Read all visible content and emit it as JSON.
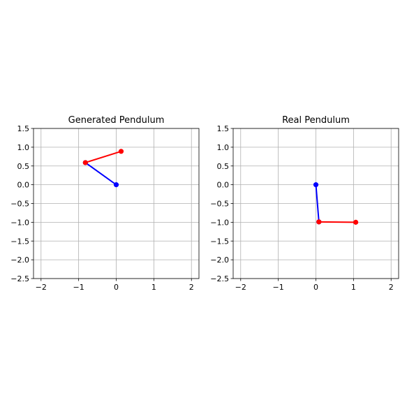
{
  "chart_data": [
    {
      "type": "line",
      "title": "Generated Pendulum",
      "xlabel": "",
      "ylabel": "",
      "xlim": [
        -2.2,
        2.2
      ],
      "ylim": [
        -2.5,
        1.5
      ],
      "xticks": [
        -2,
        -1,
        0,
        1,
        2
      ],
      "yticks": [
        1.5,
        1.0,
        0.5,
        0.0,
        -0.5,
        -1.0,
        -1.5,
        -2.0,
        -2.5
      ],
      "xtick_labels": [
        "−2",
        "−1",
        "0",
        "1",
        "2"
      ],
      "ytick_labels": [
        "1.5",
        "1.0",
        "0.5",
        "0.0",
        "−0.5",
        "−1.0",
        "−1.5",
        "−2.0",
        "−2.5"
      ],
      "grid": true,
      "series": [
        {
          "color": "#0000ff",
          "x": [
            0.0,
            -0.82
          ],
          "y": [
            0.0,
            0.59
          ]
        },
        {
          "color": "#ff0000",
          "x": [
            -0.82,
            0.13
          ],
          "y": [
            0.59,
            0.89
          ]
        }
      ]
    },
    {
      "type": "line",
      "title": "Real Pendulum",
      "xlabel": "",
      "ylabel": "",
      "xlim": [
        -2.2,
        2.2
      ],
      "ylim": [
        -2.5,
        1.5
      ],
      "xticks": [
        -2,
        -1,
        0,
        1,
        2
      ],
      "yticks": [
        1.5,
        1.0,
        0.5,
        0.0,
        -0.5,
        -1.0,
        -1.5,
        -2.0,
        -2.5
      ],
      "xtick_labels": [
        "−2",
        "−1",
        "0",
        "1",
        "2"
      ],
      "ytick_labels": [
        "1.5",
        "1.0",
        "0.5",
        "0.0",
        "−0.5",
        "−1.0",
        "−1.5",
        "−2.0",
        "−2.5"
      ],
      "grid": true,
      "series": [
        {
          "color": "#0000ff",
          "x": [
            0.0,
            0.08
          ],
          "y": [
            0.0,
            -0.99
          ]
        },
        {
          "color": "#ff0000",
          "x": [
            0.08,
            1.06
          ],
          "y": [
            -0.99,
            -1.0
          ]
        }
      ]
    }
  ]
}
